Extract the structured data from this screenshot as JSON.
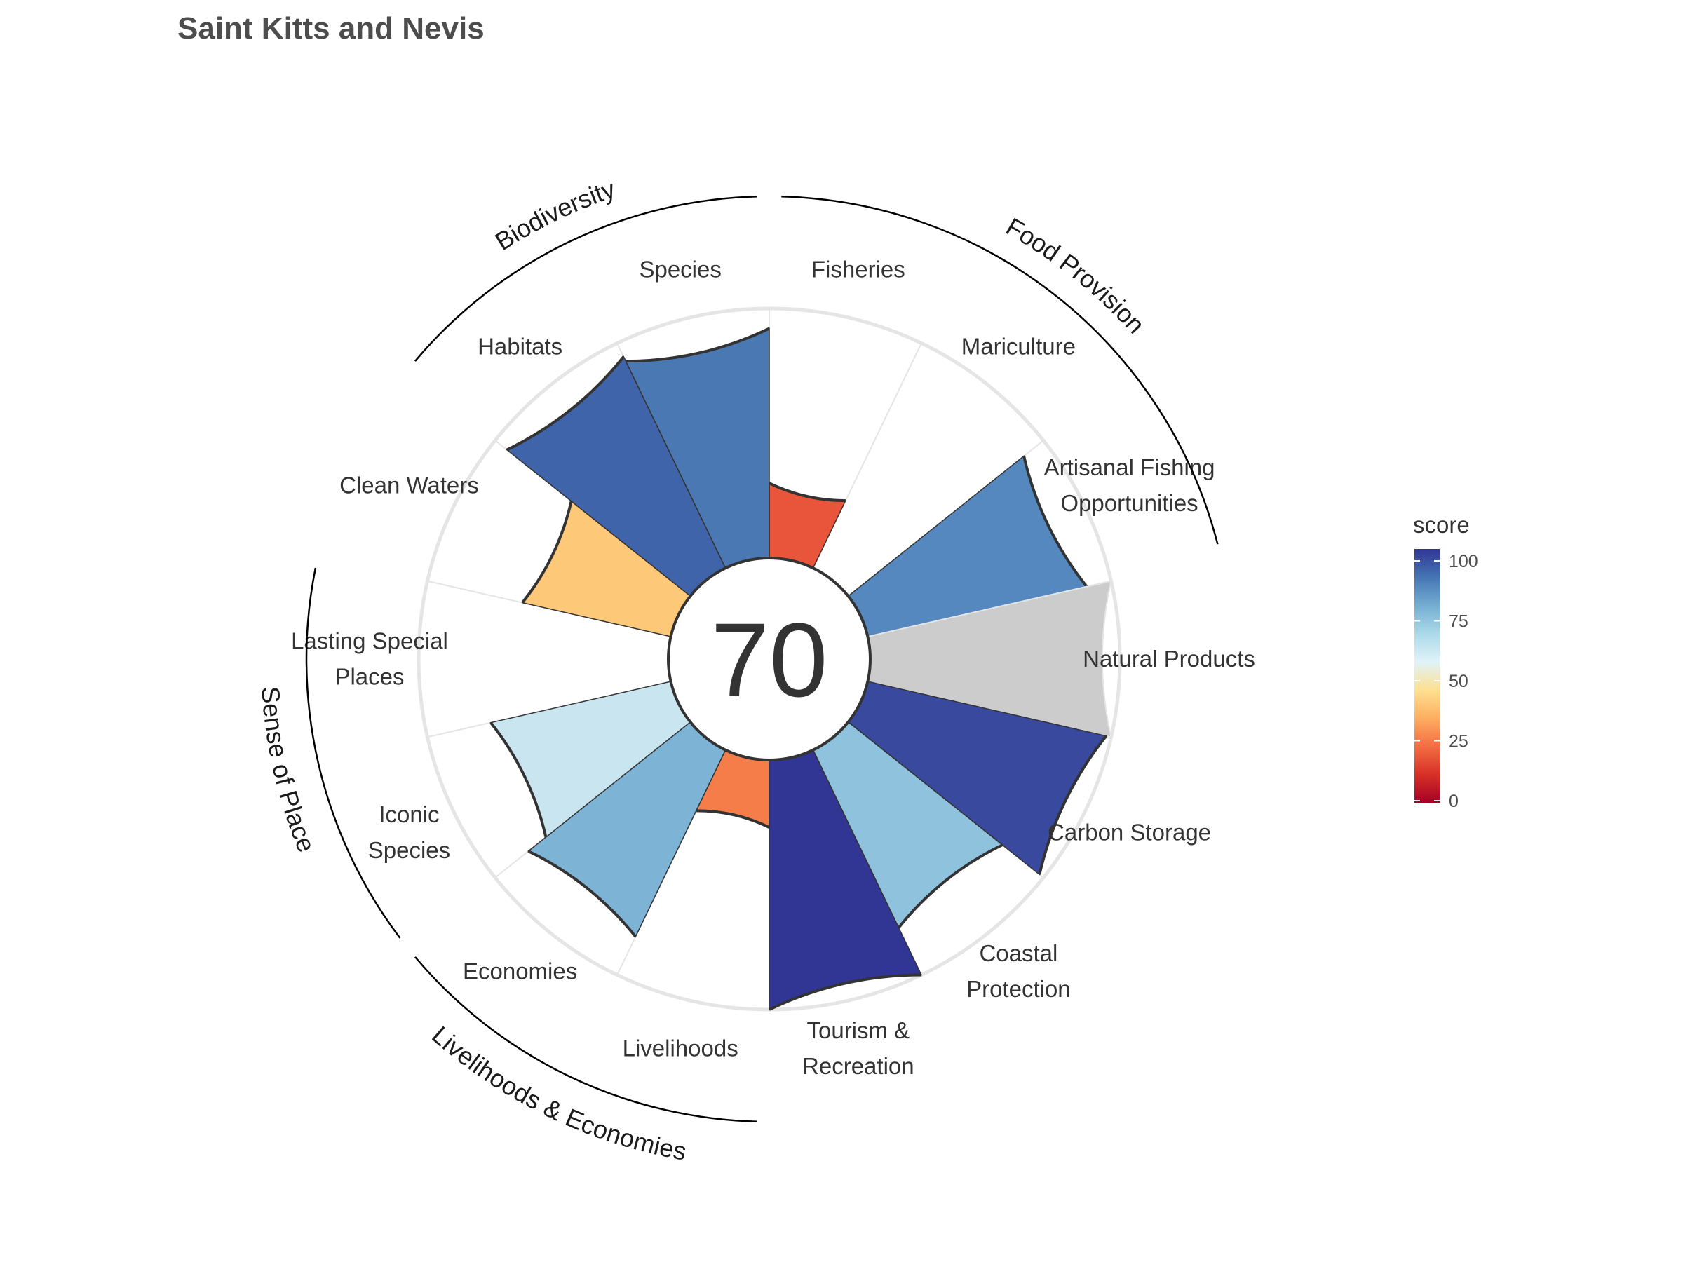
{
  "chart_data": {
    "type": "polar-bar",
    "title": "Saint Kitts and Nevis",
    "overall_score": "70",
    "max_score": 100,
    "goals": [
      {
        "name": "Fisheries",
        "label_lines": [
          "Fisheries"
        ],
        "score": 30,
        "color": "#e8553a"
      },
      {
        "name": "Mariculture",
        "label_lines": [
          "Mariculture"
        ],
        "score": null,
        "color": "#ffffff"
      },
      {
        "name": "Artisanal Fishing Opportunities",
        "label_lines": [
          "Artisanal Fishing",
          "Opportunities"
        ],
        "score": 90,
        "color": "#5588be"
      },
      {
        "name": "Natural Products",
        "label_lines": [
          "Natural Products"
        ],
        "score": 100,
        "color": "#cccccc",
        "na": true
      },
      {
        "name": "Carbon Storage",
        "label_lines": [
          "Carbon Storage"
        ],
        "score": 98,
        "color": "#39499e"
      },
      {
        "name": "Coastal Protection",
        "label_lines": [
          "Coastal",
          "Protection"
        ],
        "score": 79,
        "color": "#8fc2dd"
      },
      {
        "name": "Tourism & Recreation",
        "label_lines": [
          "Tourism &",
          "Recreation"
        ],
        "score": 100,
        "color": "#313695"
      },
      {
        "name": "Livelihoods",
        "label_lines": [
          "Livelihoods"
        ],
        "score": 27,
        "color": "#f47d4a"
      },
      {
        "name": "Economies",
        "label_lines": [
          "Economies"
        ],
        "score": 83,
        "color": "#7db4d6"
      },
      {
        "name": "Iconic Species",
        "label_lines": [
          "Iconic",
          "Species"
        ],
        "score": 74,
        "color": "#c9e6f0"
      },
      {
        "name": "Lasting Special Places",
        "label_lines": [
          "Lasting Special",
          "Places"
        ],
        "score": null,
        "color": "#ffffff"
      },
      {
        "name": "Clean Waters",
        "label_lines": [
          "Clean Waters"
        ],
        "score": 61,
        "color": "#fdc877"
      },
      {
        "name": "Habitats",
        "label_lines": [
          "Habitats"
        ],
        "score": 94,
        "color": "#4064a9"
      },
      {
        "name": "Species",
        "label_lines": [
          "Species"
        ],
        "score": 92,
        "color": "#4a78b3"
      }
    ],
    "groups": [
      {
        "name": "Food Provision"
      },
      {
        "name": "Biodiversity"
      },
      {
        "name": "Sense of Place"
      },
      {
        "name": "Livelihoods & Economies"
      }
    ],
    "legend": {
      "title": "score",
      "ticks": [
        "0",
        "25",
        "50",
        "75",
        "100"
      ],
      "colors": [
        "#a50026",
        "#d73027",
        "#f46d43",
        "#fdae61",
        "#fee090",
        "#e0f3f8",
        "#abd9e9",
        "#74add1",
        "#4575b4",
        "#313695"
      ],
      "placement": "right"
    }
  }
}
